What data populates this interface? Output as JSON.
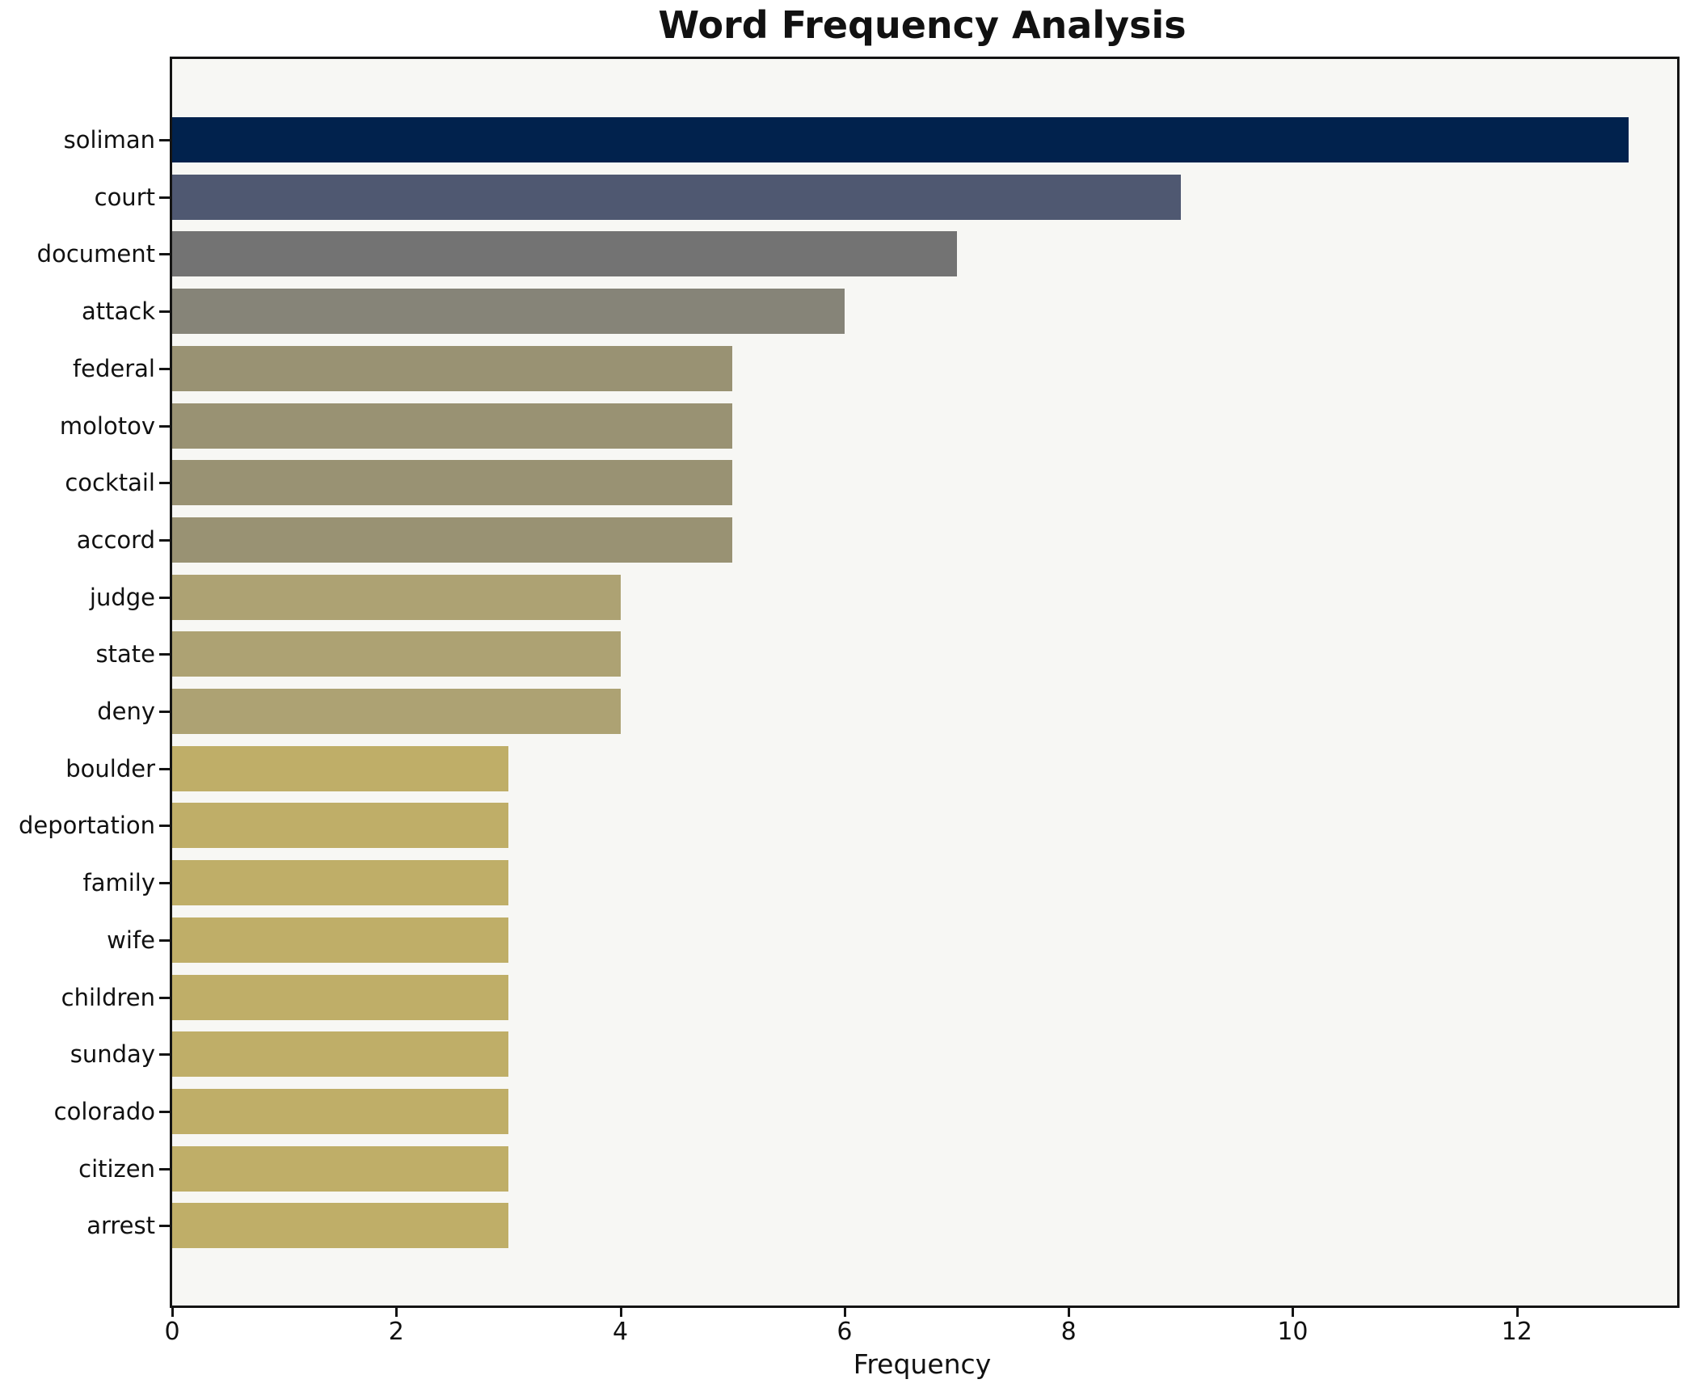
{
  "title": "Word Frequency Analysis",
  "chart_data": {
    "type": "bar",
    "orientation": "horizontal",
    "title": "Word Frequency Analysis",
    "xlabel": "Frequency",
    "ylabel": "",
    "categories": [
      "soliman",
      "court",
      "document",
      "attack",
      "federal",
      "molotov",
      "cocktail",
      "accord",
      "judge",
      "state",
      "deny",
      "boulder",
      "deportation",
      "family",
      "wife",
      "children",
      "sunday",
      "colorado",
      "citizen",
      "arrest"
    ],
    "values": [
      13,
      9,
      7,
      6,
      5,
      5,
      5,
      5,
      4,
      4,
      4,
      3,
      3,
      3,
      3,
      3,
      3,
      3,
      3,
      3
    ],
    "bar_colors": [
      "#01224d",
      "#4f5871",
      "#737373",
      "#868478",
      "#999273",
      "#999273",
      "#999273",
      "#999273",
      "#ada273",
      "#ada273",
      "#ada273",
      "#bfae68",
      "#bfae68",
      "#bfae68",
      "#bfae68",
      "#bfae68",
      "#bfae68",
      "#bfae68",
      "#bfae68",
      "#bfae68"
    ],
    "x_ticks": [
      0,
      2,
      4,
      6,
      8,
      10,
      12
    ],
    "xlim": [
      0,
      13.43
    ],
    "grid": false,
    "legend": null,
    "plot_bg": "#f7f7f4",
    "figure_bg": "#ffffff",
    "spine_color": "#141414",
    "text_color": "#111111"
  }
}
